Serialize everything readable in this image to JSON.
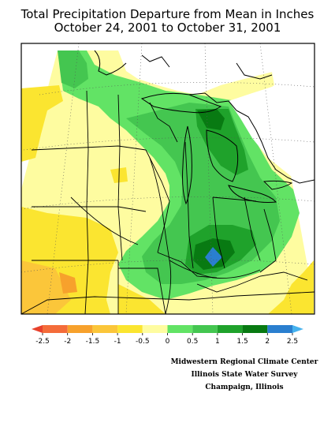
{
  "title": {
    "line1": "Total Precipitation Departure from Mean in Inches",
    "line2": "October 24, 2001 to October 31, 2001"
  },
  "legend": {
    "tick_labels": [
      "-2.5",
      "-2",
      "-1.5",
      "-1",
      "-0.5",
      "0",
      "0.5",
      "1",
      "1.5",
      "2",
      "2.5"
    ],
    "colors": [
      "#e8412c",
      "#f46c3a",
      "#f7a12c",
      "#fbc63a",
      "#fbe530",
      "#fefca0",
      "#62e365",
      "#44c650",
      "#1fa22b",
      "#087a12",
      "#2a7fcf",
      "#46b2ee"
    ]
  },
  "credits": {
    "line1": "Midwestern Regional Climate Center",
    "line2": "Illinois State Water Survey",
    "line3": "Champaign, Illinois"
  }
}
